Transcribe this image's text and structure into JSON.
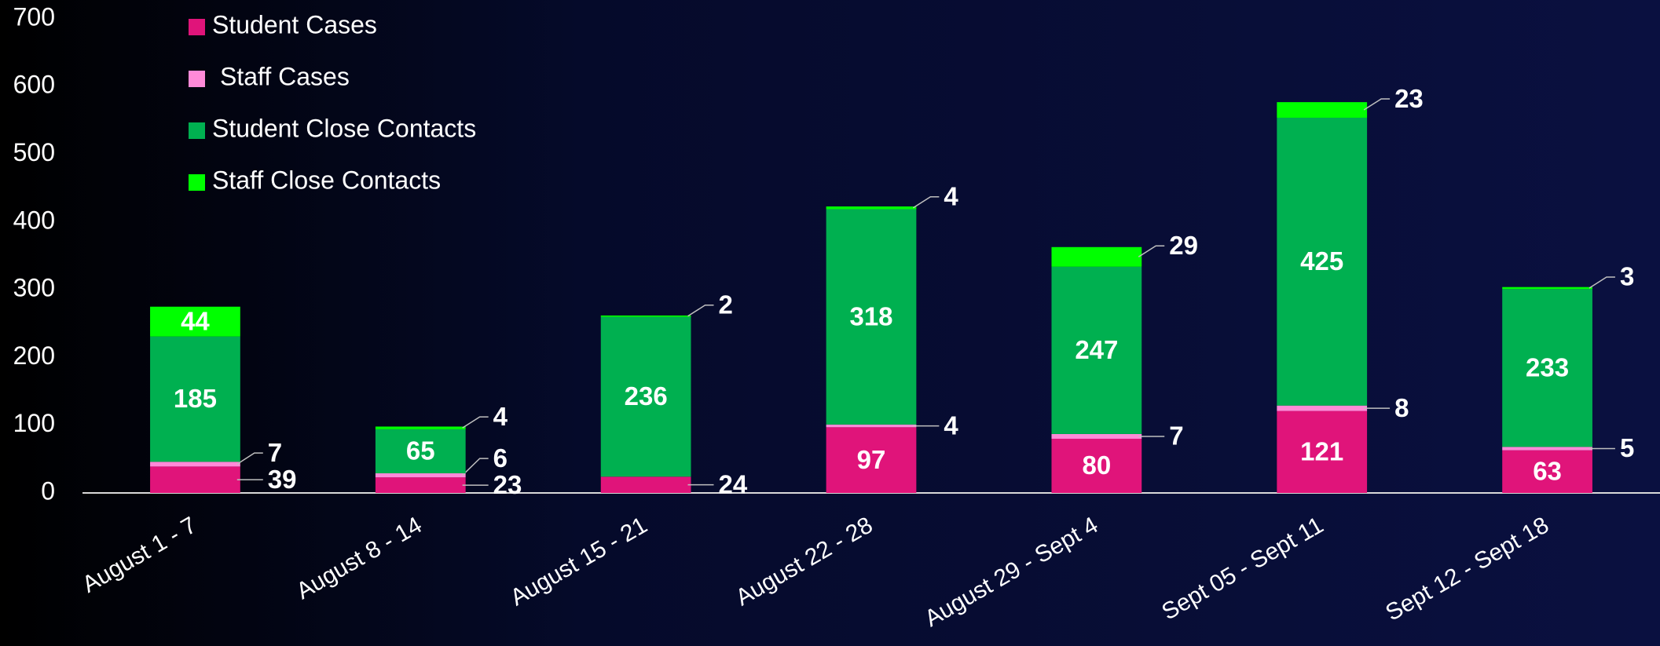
{
  "chart_data": {
    "type": "stacked_bar",
    "categories": [
      "August 1 - 7",
      "August 8 - 14",
      "August 15 - 21",
      "August 22 - 28",
      "August 29 - Sept 4",
      "Sept 05 - Sept 11",
      "Sept 12 - Sept 18"
    ],
    "series": [
      {
        "name": "Student Cases",
        "color": "#e0147a",
        "values": [
          39,
          23,
          24,
          97,
          80,
          121,
          63
        ]
      },
      {
        "name": "Staff Cases",
        "color": "#ff8ad8",
        "values": [
          7,
          6,
          null,
          4,
          7,
          8,
          5
        ]
      },
      {
        "name": "Student Close Contacts",
        "color": "#00b050",
        "values": [
          185,
          65,
          236,
          318,
          247,
          425,
          233
        ]
      },
      {
        "name": "Staff Close Contacts",
        "color": "#00ff00",
        "values": [
          44,
          4,
          2,
          4,
          29,
          23,
          3
        ]
      }
    ],
    "ylim": [
      0,
      700
    ],
    "yticks": [
      0,
      100,
      200,
      300,
      400,
      500,
      600,
      700
    ],
    "legend": "top-left"
  }
}
